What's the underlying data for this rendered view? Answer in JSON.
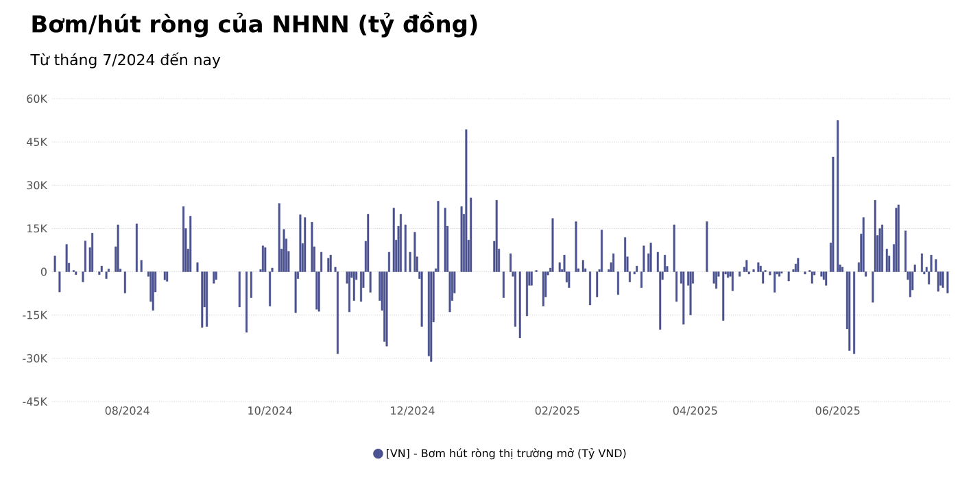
{
  "chart_data": {
    "type": "bar",
    "title": "Bơm/hút ròng của NHNN (tỷ đồng)",
    "subtitle": "Từ tháng 7/2024 đến nay",
    "categories": [
      null,
      null,
      null,
      null,
      null,
      null,
      null,
      null,
      null,
      null,
      null,
      null,
      null,
      null,
      null,
      null,
      null,
      null,
      null,
      null,
      null,
      null,
      null,
      null,
      null,
      null,
      null,
      null,
      null,
      null,
      null,
      "08/2024",
      null,
      null,
      null,
      null,
      null,
      null,
      null,
      null,
      null,
      null,
      null,
      null,
      null,
      null,
      null,
      null,
      null,
      null,
      null,
      null,
      null,
      null,
      null,
      null,
      null,
      null,
      null,
      null,
      null,
      null,
      null,
      null,
      null,
      null,
      null,
      null,
      null,
      null,
      null,
      null,
      null,
      null,
      null,
      null,
      null,
      null,
      null,
      null,
      null,
      null,
      null,
      null,
      null,
      null,
      null,
      null,
      null,
      null,
      null,
      null,
      "10/2024",
      null,
      null,
      null,
      null,
      null,
      null,
      null,
      null,
      null,
      null,
      null,
      null,
      null,
      null,
      null,
      null,
      null,
      null,
      null,
      null,
      null,
      null,
      null,
      null,
      null,
      null,
      null,
      null,
      null,
      null,
      null,
      null,
      null,
      null,
      null,
      null,
      null,
      null,
      null,
      null,
      null,
      null,
      null,
      null,
      null,
      null,
      null,
      null,
      null,
      null,
      null,
      null,
      null,
      null,
      null,
      null,
      null,
      null,
      null,
      null,
      "12/2024",
      null,
      null,
      null,
      null,
      null,
      null,
      null,
      null,
      null,
      null,
      null,
      null,
      null,
      null,
      null,
      null,
      null,
      null,
      null,
      null,
      null,
      null,
      null,
      null,
      null,
      null,
      null,
      null,
      null,
      null,
      null,
      null,
      null,
      null,
      null,
      null,
      null,
      null,
      null,
      null,
      null,
      null,
      null,
      null,
      null,
      null,
      null,
      null,
      null,
      null,
      null,
      null,
      null,
      null,
      null,
      null,
      null,
      null,
      null,
      null,
      null,
      "02/2025",
      null,
      null,
      null,
      null,
      null,
      null,
      null,
      null,
      null,
      null,
      null,
      null,
      null,
      null,
      null,
      null,
      null,
      null,
      null,
      null,
      null,
      null,
      null,
      null,
      null,
      null,
      null,
      null,
      null,
      null,
      null,
      null,
      null,
      null,
      null,
      null,
      null,
      null,
      null,
      null,
      null,
      null,
      null,
      null,
      null,
      null,
      null,
      null,
      null,
      null,
      null,
      null,
      null,
      null,
      null,
      null,
      null,
      null,
      "04/2025",
      null,
      null,
      null,
      null,
      null,
      null,
      null,
      null,
      null,
      null,
      null,
      null,
      null,
      null,
      null,
      null,
      null,
      null,
      null,
      null,
      null,
      null,
      null,
      null,
      null,
      null,
      null,
      null,
      null,
      null,
      null,
      null,
      null,
      null,
      null,
      null,
      null,
      null,
      null,
      null,
      null,
      null,
      null,
      null,
      null,
      null,
      null,
      null,
      null,
      null,
      null,
      null,
      null,
      null,
      null,
      null,
      null,
      null,
      null,
      null,
      "06/2025",
      null,
      null,
      null,
      null,
      null,
      null,
      null,
      null,
      null,
      null,
      null,
      null,
      null,
      null,
      null,
      null,
      null,
      null,
      null,
      null,
      null,
      null,
      null,
      null,
      null,
      null,
      null,
      null,
      null,
      null,
      null,
      null,
      null,
      null,
      null,
      null,
      null,
      null,
      null,
      null,
      null,
      null,
      null,
      null,
      null,
      null,
      null
    ],
    "series": [
      {
        "name": "[VN] - Bơm hút ròng thị trường mở (Tỷ VND)",
        "color": "#4b5394",
        "values": [
          5500,
          null,
          -7000,
          null,
          null,
          9500,
          3000,
          null,
          500,
          -1000,
          null,
          null,
          -3500,
          10700,
          null,
          8400,
          13400,
          null,
          null,
          -1000,
          2000,
          null,
          -2400,
          1000,
          null,
          null,
          8700,
          16300,
          1000,
          null,
          -7400,
          null,
          null,
          null,
          null,
          16600,
          null,
          4000,
          null,
          null,
          -1600,
          -10300,
          -13400,
          -7000,
          null,
          null,
          null,
          -2800,
          -3300,
          null,
          null,
          null,
          null,
          null,
          null,
          22600,
          15000,
          7900,
          19300,
          null,
          null,
          3200,
          null,
          -19300,
          -12200,
          -19000,
          null,
          null,
          -4000,
          -2700,
          null,
          null,
          null,
          null,
          null,
          null,
          null,
          null,
          null,
          -12200,
          null,
          null,
          -21000,
          null,
          -9000,
          null,
          null,
          null,
          800,
          9000,
          8400,
          null,
          -11900,
          1300,
          null,
          null,
          23700,
          7900,
          14700,
          11400,
          7100,
          null,
          null,
          -14200,
          -2400,
          19800,
          9800,
          18800,
          null,
          null,
          17200,
          8700,
          -13000,
          -13700,
          6800,
          null,
          null,
          4700,
          5800,
          null,
          1600,
          -28400,
          null,
          null,
          null,
          -4000,
          -13900,
          -2000,
          -10000,
          -2700,
          null,
          -10300,
          -5500,
          10600,
          20000,
          -7100,
          null,
          null,
          null,
          -10000,
          -13400,
          -24200,
          -25800,
          6800,
          null,
          22100,
          11000,
          15800,
          20000,
          null,
          16300,
          null,
          6800,
          null,
          13700,
          5200,
          -2400,
          -19000,
          null,
          null,
          -29200,
          -31100,
          -17400,
          1100,
          24500,
          null,
          null,
          22100,
          15800,
          -13900,
          -10000,
          -7400,
          null,
          null,
          22600,
          20000,
          49300,
          11000,
          25600,
          null,
          null,
          null,
          null,
          null,
          null,
          null,
          null,
          null,
          10600,
          24800,
          7900,
          null,
          -9000,
          null,
          null,
          6300,
          -1600,
          -19000,
          null,
          -22900,
          null,
          null,
          -15300,
          -4700,
          -4700,
          null,
          500,
          null,
          null,
          -11900,
          -8700,
          -1100,
          1300,
          18500,
          null,
          null,
          3200,
          800,
          5800,
          -3600,
          -5500,
          null,
          null,
          17400,
          1100,
          null,
          4000,
          1100,
          null,
          -11500,
          null,
          null,
          -8700,
          800,
          14500,
          null,
          null,
          800,
          3200,
          6300,
          null,
          -7900,
          null,
          null,
          11900,
          5200,
          -3500,
          null,
          -800,
          2000,
          null,
          -5500,
          9000,
          null,
          6300,
          10000,
          null,
          null,
          6800,
          -20000,
          -2700,
          5800,
          1900,
          null,
          null,
          16300,
          -10300,
          null,
          -4000,
          -18200,
          null,
          -4700,
          -15000,
          -4000,
          null,
          null,
          null,
          null,
          null,
          17400,
          null,
          null,
          -4000,
          -5800,
          -1600,
          null,
          -16900,
          -800,
          -2000,
          -1600,
          -6600,
          null,
          null,
          -1600,
          null,
          1600,
          4000,
          -800,
          null,
          800,
          null,
          3200,
          2000,
          -4000,
          500,
          null,
          -1100,
          null,
          -7100,
          -800,
          -1600,
          -500,
          null,
          null,
          -3200,
          null,
          800,
          2700,
          4700,
          null,
          null,
          -800,
          null,
          500,
          -4000,
          -1100,
          null,
          null,
          -1600,
          -2700,
          -4700,
          null,
          10000,
          39800,
          null,
          52500,
          2400,
          1600,
          null,
          -19800,
          -27300,
          null,
          -28400,
          null,
          3200,
          13100,
          18800,
          -1600,
          null,
          null,
          -10600,
          24800,
          12600,
          15000,
          16300,
          null,
          7900,
          5500,
          null,
          9500,
          22100,
          23200,
          null,
          null,
          14200,
          -2700,
          -8700,
          -6300,
          2400,
          null,
          null,
          6300,
          -800,
          1600,
          -4300,
          5800,
          null,
          4300,
          -6800,
          -4700,
          -5500,
          null,
          -7400
        ]
      }
    ],
    "ylim": [
      -45000,
      60000
    ],
    "yticks": [
      {
        "value": -45000,
        "label": "-45K"
      },
      {
        "value": -30000,
        "label": "-30K"
      },
      {
        "value": -15000,
        "label": "-15K"
      },
      0,
      {
        "value": 15000,
        "label": "15K"
      },
      {
        "value": 30000,
        "label": "30K"
      },
      {
        "value": 45000,
        "label": "45K"
      },
      {
        "value": 60000,
        "label": "60K"
      }
    ],
    "grid": "y",
    "legend": "bottom"
  }
}
